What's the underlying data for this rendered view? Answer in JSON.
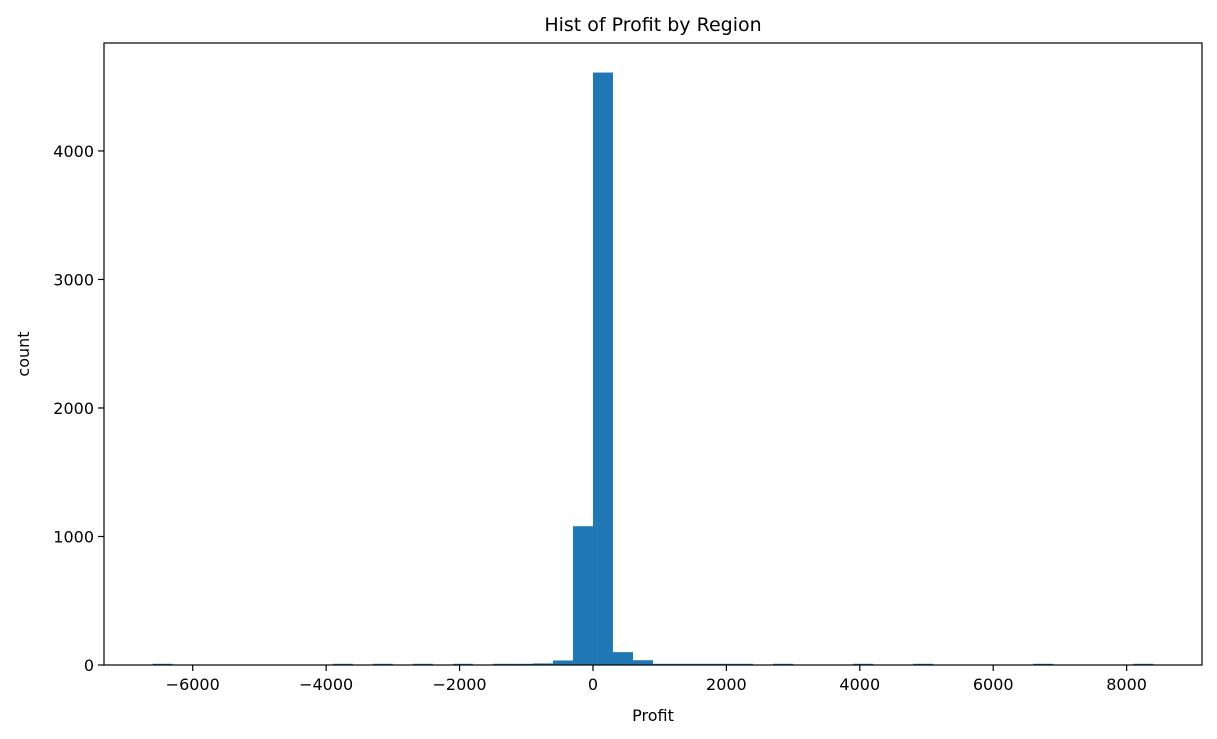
{
  "chart_data": {
    "type": "bar",
    "title": "Hist of Profit by Region",
    "xlabel": "Profit",
    "ylabel": "count",
    "xlim": [
      -7330,
      9130
    ],
    "ylim": [
      0,
      4840
    ],
    "bin_width": 300,
    "bins": [
      {
        "x0": -6600,
        "x1": -6300,
        "count": 1
      },
      {
        "x0": -3900,
        "x1": -3600,
        "count": 1
      },
      {
        "x0": -3300,
        "x1": -3000,
        "count": 1
      },
      {
        "x0": -2700,
        "x1": -2400,
        "count": 1
      },
      {
        "x0": -2100,
        "x1": -1800,
        "count": 2
      },
      {
        "x0": -1500,
        "x1": -1200,
        "count": 2
      },
      {
        "x0": -1200,
        "x1": -900,
        "count": 4
      },
      {
        "x0": -900,
        "x1": -600,
        "count": 12
      },
      {
        "x0": -600,
        "x1": -300,
        "count": 35
      },
      {
        "x0": -300,
        "x1": 0,
        "count": 1080
      },
      {
        "x0": 0,
        "x1": 300,
        "count": 4610
      },
      {
        "x0": 300,
        "x1": 600,
        "count": 100
      },
      {
        "x0": 600,
        "x1": 900,
        "count": 37
      },
      {
        "x0": 900,
        "x1": 1200,
        "count": 8
      },
      {
        "x0": 1200,
        "x1": 1500,
        "count": 4
      },
      {
        "x0": 1500,
        "x1": 1800,
        "count": 3
      },
      {
        "x0": 1800,
        "x1": 2100,
        "count": 2
      },
      {
        "x0": 2100,
        "x1": 2400,
        "count": 2
      },
      {
        "x0": 2700,
        "x1": 3000,
        "count": 1
      },
      {
        "x0": 3900,
        "x1": 4200,
        "count": 1
      },
      {
        "x0": 4800,
        "x1": 5100,
        "count": 1
      },
      {
        "x0": 6600,
        "x1": 6900,
        "count": 1
      },
      {
        "x0": 8100,
        "x1": 8400,
        "count": 1
      }
    ],
    "xticks": [
      -6000,
      -4000,
      -2000,
      0,
      2000,
      4000,
      6000,
      8000
    ],
    "xtick_labels": [
      "−6000",
      "−4000",
      "−2000",
      "0",
      "2000",
      "4000",
      "6000",
      "8000"
    ],
    "yticks": [
      0,
      1000,
      2000,
      3000,
      4000
    ],
    "ytick_labels": [
      "0",
      "1000",
      "2000",
      "3000",
      "4000"
    ],
    "bar_color": "#1f77b4",
    "grid": false,
    "legend": "none"
  }
}
